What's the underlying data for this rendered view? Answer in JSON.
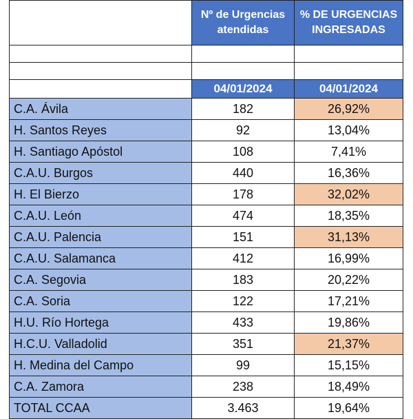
{
  "header": {
    "col2": "Nº de Urgencias atendidas",
    "col3": "% DE URGENCIAS INGRESADAS"
  },
  "dates": {
    "col2": "04/01/2024",
    "col3": "04/01/2024"
  },
  "rows": [
    {
      "name": "C.A. Ávila",
      "count": "182",
      "pct": "26,92%",
      "highlight": true
    },
    {
      "name": "H. Santos Reyes",
      "count": "92",
      "pct": "13,04%",
      "highlight": false
    },
    {
      "name": "H. Santiago Apóstol",
      "count": "108",
      "pct": "7,41%",
      "highlight": false
    },
    {
      "name": "C.A.U. Burgos",
      "count": "440",
      "pct": "16,36%",
      "highlight": false
    },
    {
      "name": "H. El Bierzo",
      "count": "178",
      "pct": "32,02%",
      "highlight": true
    },
    {
      "name": "C.A.U. León",
      "count": "474",
      "pct": "18,35%",
      "highlight": false
    },
    {
      "name": "C.A.U. Palencia",
      "count": "151",
      "pct": "31,13%",
      "highlight": true
    },
    {
      "name": "C.A.U. Salamanca",
      "count": "412",
      "pct": "16,99%",
      "highlight": false
    },
    {
      "name": "C.A. Segovia",
      "count": "183",
      "pct": "20,22%",
      "highlight": false
    },
    {
      "name": "C.A. Soria",
      "count": "122",
      "pct": "17,21%",
      "highlight": false
    },
    {
      "name": "H.U. Río Hortega",
      "count": "433",
      "pct": "19,86%",
      "highlight": false
    },
    {
      "name": "H.C.U. Valladolid",
      "count": "351",
      "pct": "21,37%",
      "highlight": true
    },
    {
      "name": "H. Medina del Campo",
      "count": "99",
      "pct": "15,15%",
      "highlight": false
    },
    {
      "name": "C.A. Zamora",
      "count": "238",
      "pct": "18,49%",
      "highlight": false
    },
    {
      "name": "TOTAL CCAA",
      "count": "3.463",
      "pct": "19,64%",
      "highlight": false
    }
  ],
  "colors": {
    "header_blue": "#4a74c4",
    "name_blue": "#a5bde6",
    "highlight_orange": "#f4c9a8"
  }
}
